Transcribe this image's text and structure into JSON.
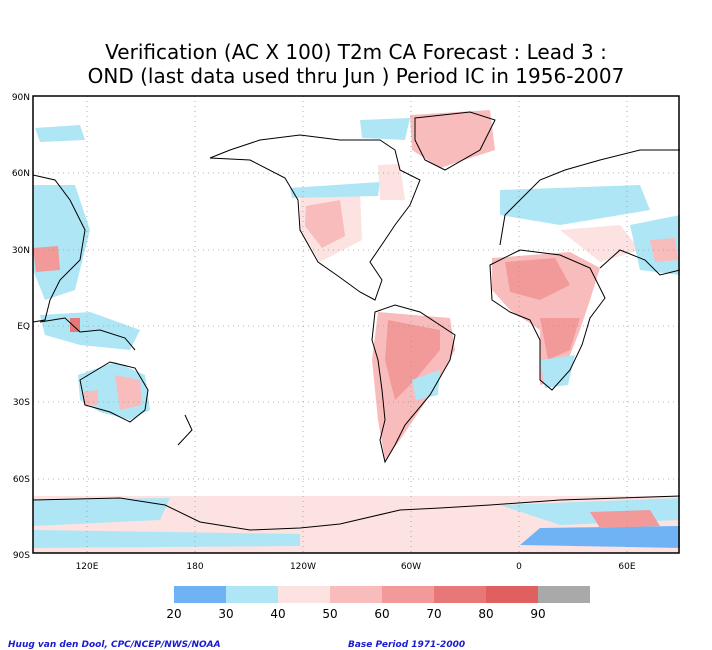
{
  "title_line1": "Verification (AC X 100) T2m CA Forecast : Lead 3 :",
  "title_line2": "OND (last data used thru Jun ) Period IC in 1956-2007",
  "lat_labels": [
    "90N",
    "60N",
    "30N",
    "EQ",
    "30S",
    "60S",
    "90S"
  ],
  "lon_labels": [
    "120E",
    "180",
    "120W",
    "60W",
    "0",
    "60E"
  ],
  "colorbar": {
    "colors": [
      "#6fb3f5",
      "#aee6f5",
      "#fde2e2",
      "#f9bcbc",
      "#f29a9a",
      "#e87878",
      "#e06060",
      "#a9a9a9"
    ],
    "labels": [
      "20",
      "30",
      "40",
      "50",
      "60",
      "70",
      "80",
      "90"
    ]
  },
  "credit_left": "Huug van den Dool, CPC/NCEP/NWS/NOAA",
  "credit_right": "Base Period 1971-2000"
}
